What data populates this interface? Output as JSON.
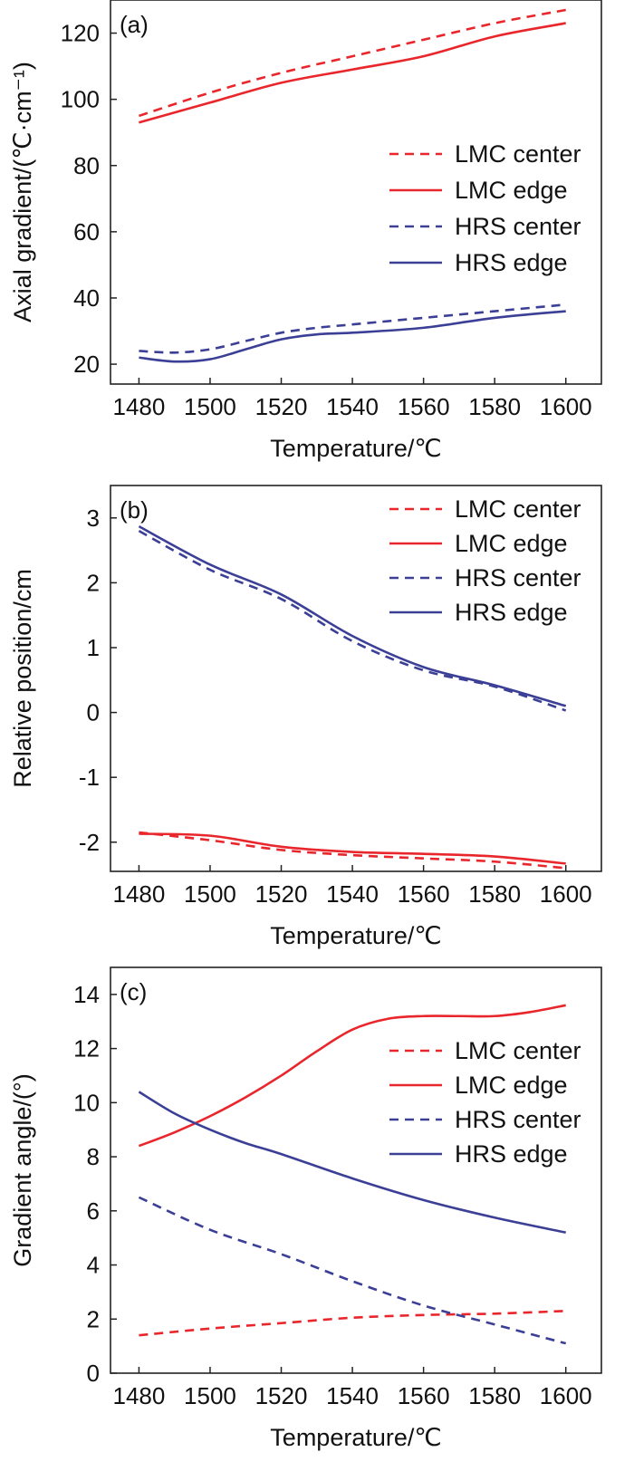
{
  "chart_data": [
    {
      "type": "line",
      "panel": "(a)",
      "xlabel": "Temperature/℃",
      "ylabel": "Axial gradient/(℃·cm⁻¹)",
      "xlim": [
        1472,
        1610
      ],
      "ylim": [
        14,
        130
      ],
      "xticks": [
        1480,
        1500,
        1520,
        1540,
        1560,
        1580,
        1600
      ],
      "yticks": [
        20,
        40,
        60,
        80,
        100,
        120
      ],
      "legend_position": "center-right",
      "series": [
        {
          "name": "LMC center",
          "color": "#e8262b",
          "dash": true,
          "x": [
            1480,
            1500,
            1520,
            1540,
            1560,
            1580,
            1600
          ],
          "y": [
            95,
            102,
            108,
            113,
            118,
            123,
            127
          ]
        },
        {
          "name": "LMC edge",
          "color": "#e8262b",
          "dash": false,
          "x": [
            1480,
            1500,
            1520,
            1540,
            1560,
            1580,
            1600
          ],
          "y": [
            93,
            99,
            105,
            109,
            113,
            119,
            123
          ]
        },
        {
          "name": "HRS center",
          "color": "#3b3f95",
          "dash": true,
          "x": [
            1480,
            1490,
            1500,
            1510,
            1520,
            1530,
            1540,
            1560,
            1580,
            1600
          ],
          "y": [
            24,
            23.5,
            24.5,
            27,
            29.5,
            31,
            32,
            34,
            36,
            38
          ]
        },
        {
          "name": "HRS edge",
          "color": "#3b3f95",
          "dash": false,
          "x": [
            1480,
            1490,
            1500,
            1510,
            1520,
            1530,
            1540,
            1560,
            1580,
            1600
          ],
          "y": [
            22,
            20.8,
            21.5,
            24.5,
            27.5,
            29,
            29.5,
            31,
            34,
            36
          ]
        }
      ]
    },
    {
      "type": "line",
      "panel": "(b)",
      "xlabel": "Temperature/℃",
      "ylabel": "Relative position/cm",
      "xlim": [
        1472,
        1610
      ],
      "ylim": [
        -2.45,
        3.5
      ],
      "xticks": [
        1480,
        1500,
        1520,
        1540,
        1560,
        1580,
        1600
      ],
      "yticks": [
        -2,
        -1,
        0,
        1,
        2,
        3
      ],
      "legend_position": "top-right",
      "series": [
        {
          "name": "LMC center",
          "color": "#e8262b",
          "dash": true,
          "x": [
            1480,
            1500,
            1520,
            1540,
            1560,
            1580,
            1600
          ],
          "y": [
            -1.85,
            -1.97,
            -2.12,
            -2.2,
            -2.25,
            -2.3,
            -2.4
          ]
        },
        {
          "name": "LMC edge",
          "color": "#e8262b",
          "dash": false,
          "x": [
            1480,
            1500,
            1520,
            1540,
            1560,
            1580,
            1600
          ],
          "y": [
            -1.87,
            -1.9,
            -2.07,
            -2.15,
            -2.18,
            -2.22,
            -2.33
          ]
        },
        {
          "name": "HRS center",
          "color": "#3b3f95",
          "dash": true,
          "x": [
            1480,
            1500,
            1520,
            1540,
            1560,
            1580,
            1600
          ],
          "y": [
            2.8,
            2.2,
            1.75,
            1.1,
            0.65,
            0.4,
            0.03
          ]
        },
        {
          "name": "HRS edge",
          "color": "#3b3f95",
          "dash": false,
          "x": [
            1480,
            1500,
            1520,
            1540,
            1560,
            1580,
            1600
          ],
          "y": [
            2.87,
            2.28,
            1.82,
            1.18,
            0.7,
            0.42,
            0.1
          ]
        }
      ]
    },
    {
      "type": "line",
      "panel": "(c)",
      "xlabel": "Temperature/℃",
      "ylabel": "Gradient angle/(°)",
      "xlim": [
        1472,
        1610
      ],
      "ylim": [
        0,
        15
      ],
      "xticks": [
        1480,
        1500,
        1520,
        1540,
        1560,
        1580,
        1600
      ],
      "yticks": [
        0,
        2,
        4,
        6,
        8,
        10,
        12,
        14
      ],
      "legend_position": "center-right",
      "series": [
        {
          "name": "LMC center",
          "color": "#e8262b",
          "dash": true,
          "x": [
            1480,
            1500,
            1520,
            1540,
            1560,
            1580,
            1600
          ],
          "y": [
            1.4,
            1.65,
            1.85,
            2.05,
            2.15,
            2.2,
            2.3
          ]
        },
        {
          "name": "LMC edge",
          "color": "#e8262b",
          "dash": false,
          "x": [
            1480,
            1490,
            1500,
            1510,
            1520,
            1530,
            1540,
            1550,
            1560,
            1570,
            1580,
            1590,
            1600
          ],
          "y": [
            8.4,
            8.9,
            9.5,
            10.2,
            11.0,
            11.9,
            12.7,
            13.1,
            13.2,
            13.2,
            13.2,
            13.35,
            13.6
          ]
        },
        {
          "name": "HRS center",
          "color": "#3b3f95",
          "dash": true,
          "x": [
            1480,
            1500,
            1520,
            1540,
            1560,
            1580,
            1600
          ],
          "y": [
            6.5,
            5.3,
            4.4,
            3.4,
            2.5,
            1.8,
            1.1
          ]
        },
        {
          "name": "HRS edge",
          "color": "#3b3f95",
          "dash": false,
          "x": [
            1480,
            1490,
            1500,
            1510,
            1520,
            1540,
            1560,
            1580,
            1600
          ],
          "y": [
            10.4,
            9.6,
            9.0,
            8.5,
            8.1,
            7.2,
            6.4,
            5.75,
            5.2
          ]
        }
      ]
    }
  ]
}
